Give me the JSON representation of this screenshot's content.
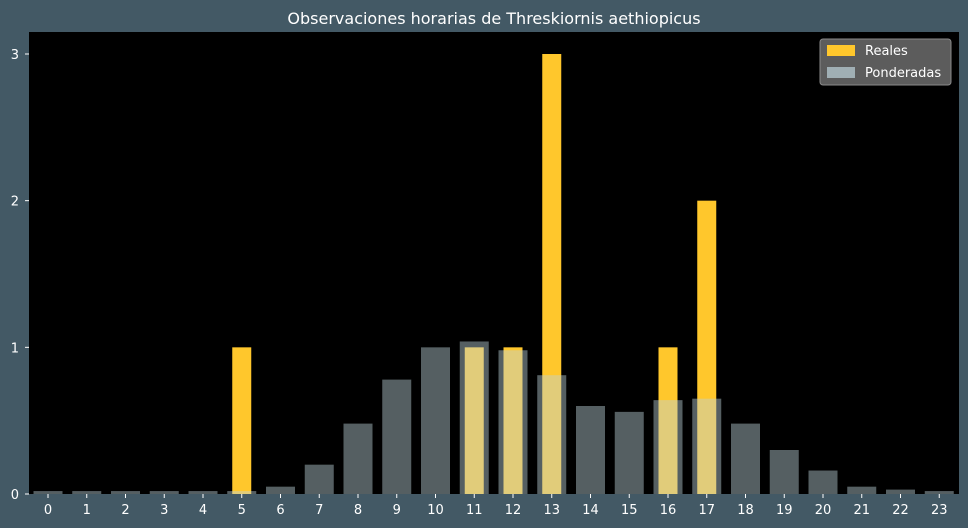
{
  "chart_data": {
    "type": "bar",
    "title": "Observaciones horarias de Threskiornis aethiopicus",
    "xlabel": "",
    "ylabel": "",
    "categories": [
      "0",
      "1",
      "2",
      "3",
      "4",
      "5",
      "6",
      "7",
      "8",
      "9",
      "10",
      "11",
      "12",
      "13",
      "14",
      "15",
      "16",
      "17",
      "18",
      "19",
      "20",
      "21",
      "22",
      "23"
    ],
    "ylim": [
      0,
      3.15
    ],
    "yticks": [
      0,
      1,
      2,
      3
    ],
    "series": [
      {
        "name": "Reales",
        "color": "#ffc72c",
        "values": [
          0,
          0,
          0,
          0,
          0,
          1,
          0,
          0,
          0,
          0,
          0,
          1,
          1,
          3,
          0,
          0,
          1,
          2,
          0,
          0,
          0,
          0,
          0,
          0
        ]
      },
      {
        "name": "Ponderadas",
        "color": "#bdd3da",
        "opacity": 0.45,
        "values": [
          0.02,
          0.02,
          0.02,
          0.02,
          0.02,
          0.02,
          0.05,
          0.2,
          0.48,
          0.78,
          1.0,
          1.04,
          0.98,
          0.81,
          0.6,
          0.56,
          0.64,
          0.65,
          0.48,
          0.3,
          0.16,
          0.05,
          0.03,
          0.02
        ]
      }
    ],
    "legend": {
      "position": "top-right"
    },
    "grid": false,
    "plot_background": "#000000",
    "figure_background": "#435965"
  }
}
